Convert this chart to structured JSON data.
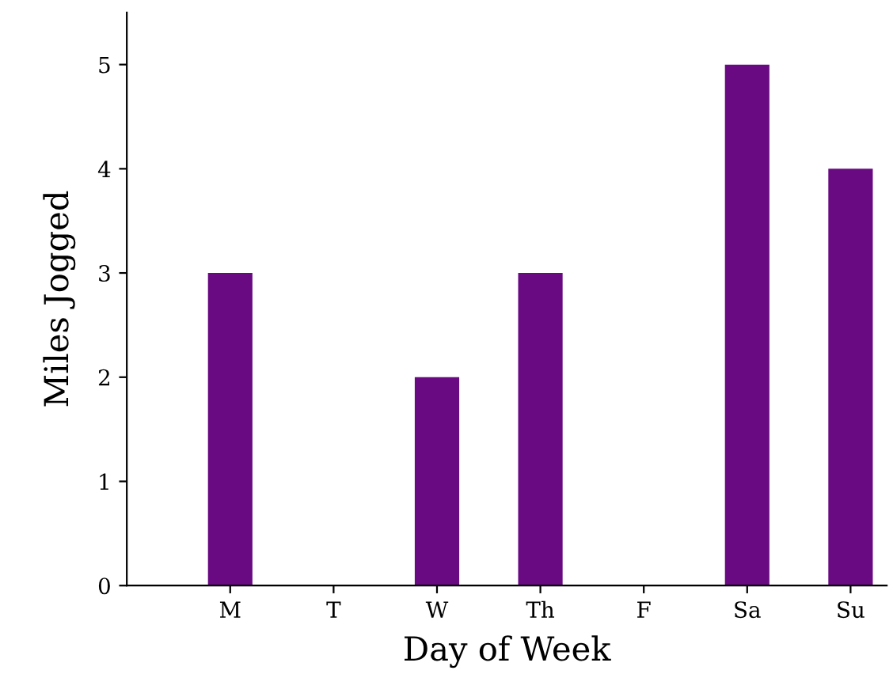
{
  "chart_data": {
    "type": "bar",
    "xlabel": "Day of Week",
    "ylabel": "Miles Jogged",
    "categories": [
      "M",
      "T",
      "W",
      "Th",
      "F",
      "Sa",
      "Su"
    ],
    "values": [
      3,
      0,
      2,
      3,
      0,
      5,
      4
    ],
    "color": "#6a0a82",
    "ylim": [
      0,
      5.5
    ],
    "yticks": [
      0,
      1,
      2,
      3,
      4,
      5
    ],
    "grid": false,
    "legend": false
  }
}
